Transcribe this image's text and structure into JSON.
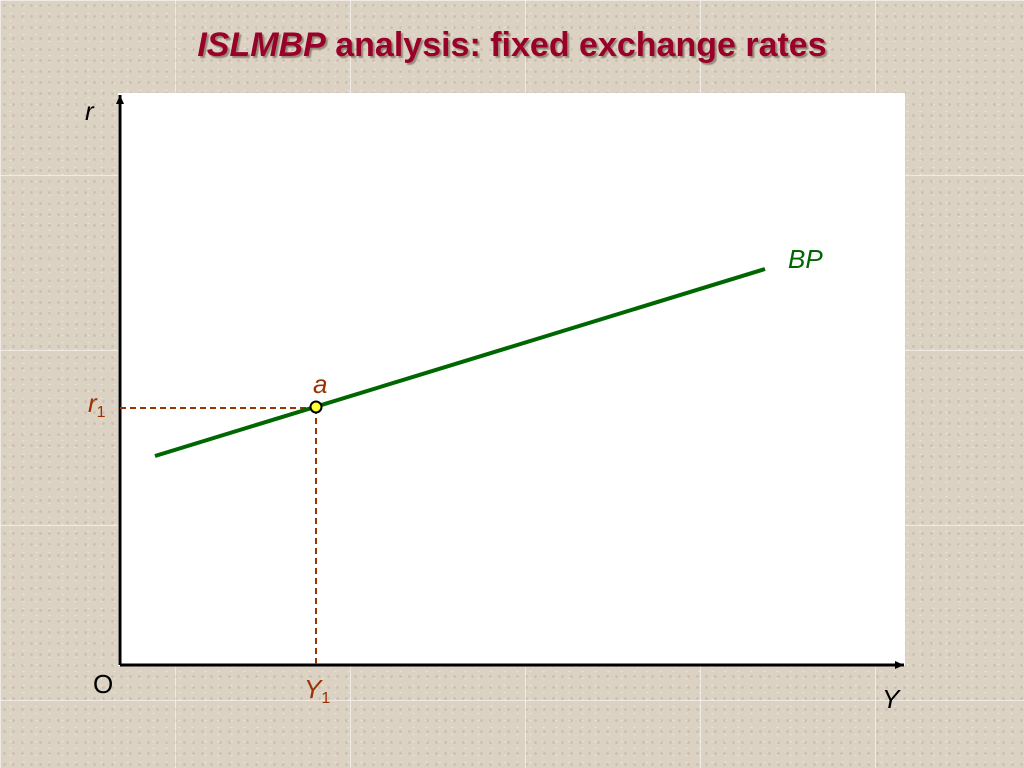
{
  "title": {
    "italic": "ISLMBP",
    "rest": " analysis: fixed exchange rates"
  },
  "axes": {
    "y_label": "r",
    "x_label": "Y",
    "origin": "O"
  },
  "curve": {
    "label": "BP"
  },
  "point": {
    "label": "a",
    "r": {
      "main": "r",
      "sub": "1"
    },
    "y": {
      "main": "Y",
      "sub": "1"
    }
  }
}
